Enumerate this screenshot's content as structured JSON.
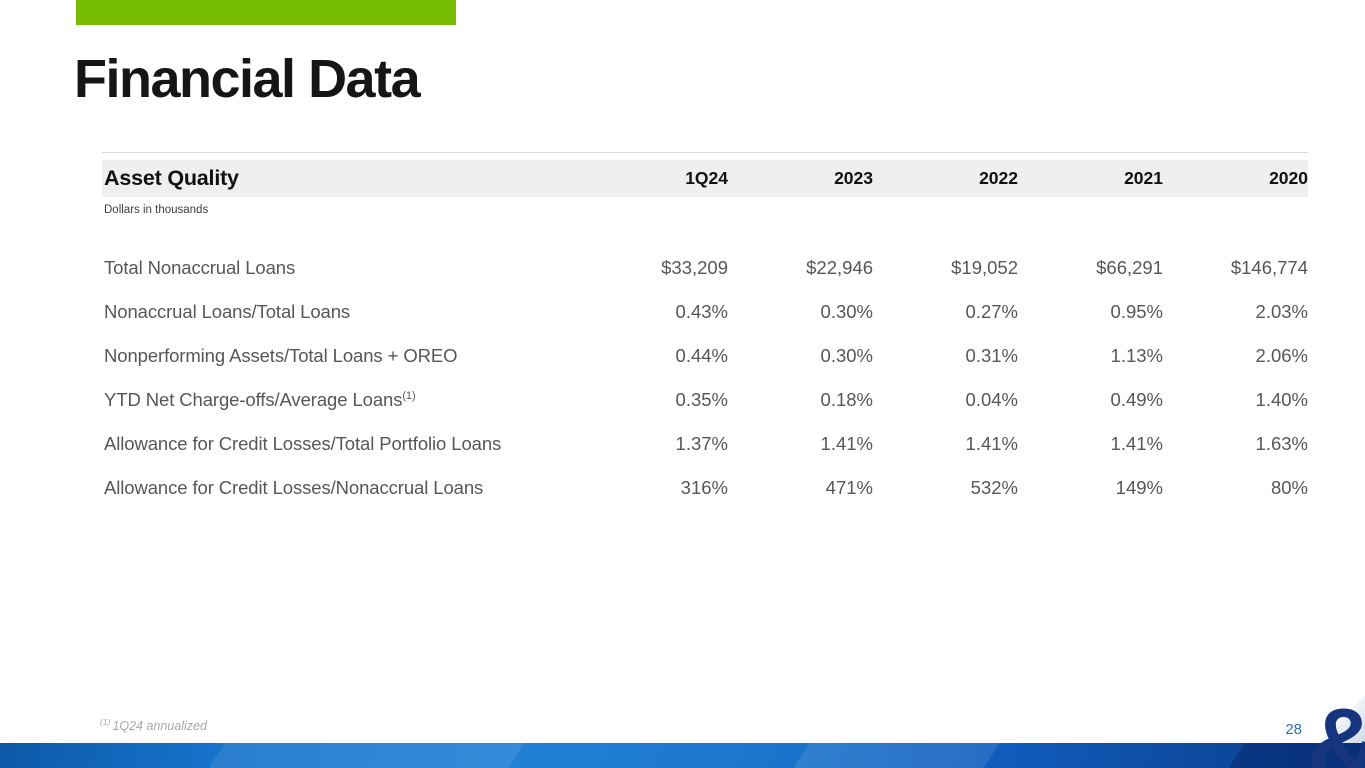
{
  "slide": {
    "title": "Financial Data",
    "page_number": "28",
    "footnote": {
      "marker": "(1)",
      "text": "1Q24 annualized"
    },
    "logo_glyph": "&"
  },
  "table": {
    "title": "Asset Quality",
    "subtitle": "Dollars in thousands",
    "columns": [
      "1Q24",
      "2023",
      "2022",
      "2021",
      "2020"
    ],
    "rows": [
      {
        "label": "Total Nonaccrual Loans",
        "superscript": "",
        "values": [
          "$33,209",
          "$22,946",
          "$19,052",
          "$66,291",
          "$146,774"
        ]
      },
      {
        "label": "Nonaccrual Loans/Total Loans",
        "superscript": "",
        "values": [
          "0.43%",
          "0.30%",
          "0.27%",
          "0.95%",
          "2.03%"
        ]
      },
      {
        "label": "Nonperforming Assets/Total Loans + OREO",
        "superscript": "",
        "values": [
          "0.44%",
          "0.30%",
          "0.31%",
          "1.13%",
          "2.06%"
        ]
      },
      {
        "label": "YTD Net Charge-offs/Average Loans",
        "superscript": "(1)",
        "values": [
          "0.35%",
          "0.18%",
          "0.04%",
          "0.49%",
          "1.40%"
        ]
      },
      {
        "label": "Allowance for Credit Losses/Total Portfolio Loans",
        "superscript": "",
        "values": [
          "1.37%",
          "1.41%",
          "1.41%",
          "1.41%",
          "1.63%"
        ]
      },
      {
        "label": "Allowance for Credit Losses/Nonaccrual Loans",
        "superscript": "",
        "values": [
          "316%",
          "471%",
          "532%",
          "149%",
          "80%"
        ]
      }
    ]
  },
  "colors": {
    "accent_green": "#76BC00",
    "header_band_gray": "#efefef",
    "heading_text": "#111111",
    "body_text": "#55575b",
    "footnote_gray": "#a8a8a8",
    "page_number_blue": "#2f6eb5",
    "wave_blue": "#1571c9",
    "wave_blue_dark": "#0a3c8e",
    "logo_navy": "#16357e"
  }
}
